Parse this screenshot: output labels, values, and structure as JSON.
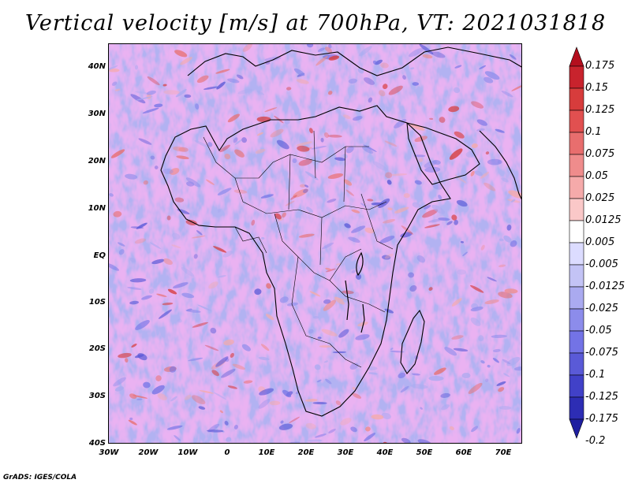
{
  "title": "Vertical velocity [m/s] at 700hPa, VT: 2021031818",
  "credit": "GrADS: IGES/COLA",
  "map": {
    "lon_range": [
      -30,
      75
    ],
    "lat_range": [
      -40,
      45
    ],
    "lat_ticks": [
      "40N",
      "30N",
      "20N",
      "10N",
      "EQ",
      "10S",
      "20S",
      "30S",
      "40S"
    ],
    "lon_ticks": [
      "30W",
      "20W",
      "10W",
      "0",
      "10E",
      "20E",
      "30E",
      "40E",
      "50E",
      "60E",
      "70E"
    ]
  },
  "colorbar": {
    "labels": [
      "0.175",
      "0.15",
      "0.125",
      "0.1",
      "0.075",
      "0.05",
      "0.025",
      "0.0125",
      "0.005",
      "-0.005",
      "-0.0125",
      "-0.025",
      "-0.05",
      "-0.075",
      "-0.1",
      "-0.125",
      "-0.175",
      "-0.2"
    ],
    "colors": [
      "#b40f1e",
      "#c8232d",
      "#d73c3c",
      "#e15050",
      "#e86e6e",
      "#ef8c8c",
      "#f5aaaa",
      "#fac8c8",
      "#ffffff",
      "#dcdcff",
      "#c3c3f5",
      "#aaaaf0",
      "#8c8ceb",
      "#7373e6",
      "#5a5ad7",
      "#4141c8",
      "#2d2db4",
      "#1e1ea0"
    ]
  }
}
